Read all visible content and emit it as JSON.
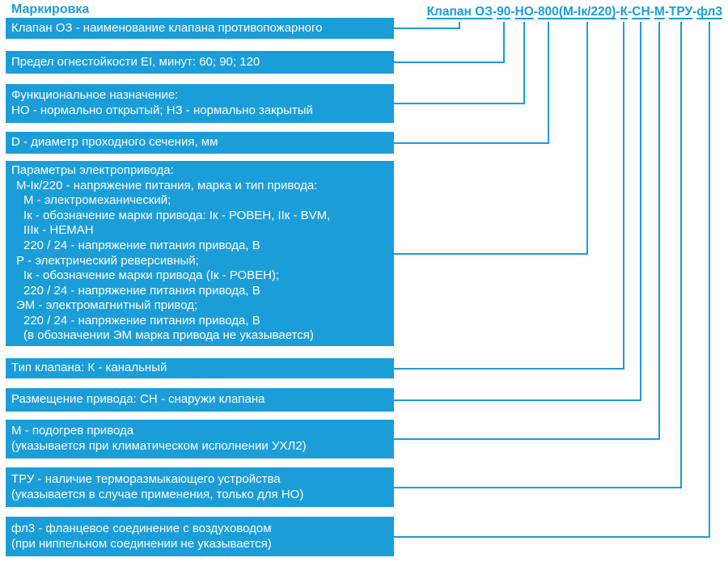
{
  "colors": {
    "accent": "#1B9DD8",
    "box_text": "#FFFFFF",
    "background": "#FFFFFF"
  },
  "title": "Маркировка",
  "formula": {
    "full": "Клапан ОЗ-90-НО-800(М-Iк/220)-К-СН-М-ТРУ-фл3",
    "parts": [
      {
        "text": "Клапан ОЗ",
        "underline": true
      },
      {
        "text": "-",
        "underline": false
      },
      {
        "text": "90",
        "underline": true
      },
      {
        "text": "-",
        "underline": false
      },
      {
        "text": "НО",
        "underline": true
      },
      {
        "text": "-",
        "underline": false
      },
      {
        "text": "800",
        "underline": true
      },
      {
        "text": "(М-Iк/220)",
        "underline": true
      },
      {
        "text": "-",
        "underline": false
      },
      {
        "text": "К",
        "underline": true
      },
      {
        "text": "-",
        "underline": false
      },
      {
        "text": "СН",
        "underline": true
      },
      {
        "text": "-",
        "underline": false
      },
      {
        "text": "М",
        "underline": true
      },
      {
        "text": "-",
        "underline": false
      },
      {
        "text": "ТРУ",
        "underline": true
      },
      {
        "text": "-",
        "underline": false
      },
      {
        "text": "фл3",
        "underline": true
      }
    ]
  },
  "boxes": [
    {
      "id": "valve-name",
      "lines": [
        {
          "text": "Клапан ОЗ - наименование клапана противопожарного",
          "indent": 0
        }
      ]
    },
    {
      "id": "fire-resistance",
      "lines": [
        {
          "text": "Предел огнестойкости EI, минут: 60; 90; 120",
          "indent": 0
        }
      ]
    },
    {
      "id": "functional-purpose",
      "lines": [
        {
          "text": "Функциональное назначение:",
          "indent": 0
        },
        {
          "text": "НО - нормально открытый; НЗ - нормально закрытый",
          "indent": 0
        }
      ]
    },
    {
      "id": "diameter",
      "lines": [
        {
          "text": "D - диаметр проходного сечения, мм",
          "indent": 0
        }
      ]
    },
    {
      "id": "drive-parameters",
      "lines": [
        {
          "text": "Параметры электропривода:",
          "indent": 0
        },
        {
          "text": "М-Iк/220 - напряжение питания, марка и тип привода:",
          "indent": 1
        },
        {
          "text": "М - электромеханический;",
          "indent": 2
        },
        {
          "text": "Iк - обозначение марки привода: Iк - РОВЕН, IIк - BVM,",
          "indent": 2
        },
        {
          "text": "IIIк - НЕМАН",
          "indent": 2
        },
        {
          "text": "220 / 24 - напряжение питания привода, В",
          "indent": 2
        },
        {
          "text": "Р - электрический реверсивный;",
          "indent": 1
        },
        {
          "text": "Iк - обозначение марки привода (Iк - РОВЕН);",
          "indent": 2
        },
        {
          "text": "220 / 24 - напряжение питания привода, В",
          "indent": 2
        },
        {
          "text": "ЭМ - электромагнитный привод;",
          "indent": 1
        },
        {
          "text": "220 / 24 - напряжение питания привода, В",
          "indent": 2
        },
        {
          "text": "(в обозначении ЭМ марка привода не указывается)",
          "indent": 2
        }
      ]
    },
    {
      "id": "valve-type",
      "lines": [
        {
          "text": "Тип клапана: К - канальный",
          "indent": 0
        }
      ]
    },
    {
      "id": "drive-placement",
      "lines": [
        {
          "text": "Размещение привода: СН - снаружи клапана",
          "indent": 0
        }
      ]
    },
    {
      "id": "drive-heating",
      "lines": [
        {
          "text": "М - подогрев привода",
          "indent": 0
        },
        {
          "text": "(указывается при климатическом исполнении УХЛ2)",
          "indent": 0
        }
      ]
    },
    {
      "id": "thermal-release",
      "lines": [
        {
          "text": "ТРУ - наличие терморазмыкающего устройства",
          "indent": 0
        },
        {
          "text": "(указывается в случае применения, только для НО)",
          "indent": 0
        }
      ]
    },
    {
      "id": "flange-connection",
      "lines": [
        {
          "text": "фл3 - фланцевое соединение с воздуховодом",
          "indent": 0
        },
        {
          "text": "(при ниппельном соединении не указывается)",
          "indent": 0
        }
      ]
    }
  ]
}
